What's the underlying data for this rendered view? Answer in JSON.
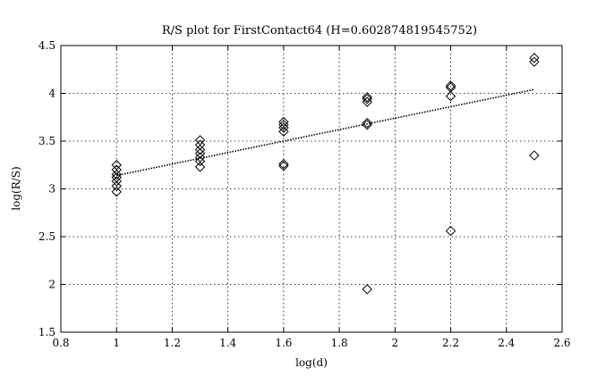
{
  "chart_data": {
    "type": "scatter",
    "title": "R/S plot for FirstContact64 (H=0.602874819545752)",
    "xlabel": "log(d)",
    "ylabel": "log(R/S)",
    "xlim": [
      0.8,
      2.6
    ],
    "ylim": [
      1.5,
      4.5
    ],
    "x_ticks": [
      "0.8",
      "1",
      "1.2",
      "1.4",
      "1.6",
      "1.8",
      "2",
      "2.2",
      "2.4",
      "2.6"
    ],
    "y_ticks": [
      "1.5",
      "2",
      "2.5",
      "3",
      "3.5",
      "4",
      "4.5"
    ],
    "grid": true,
    "marker": "diamond",
    "points": [
      [
        1.0,
        3.25
      ],
      [
        1.0,
        3.2
      ],
      [
        1.0,
        3.15
      ],
      [
        1.0,
        3.12
      ],
      [
        1.0,
        3.08
      ],
      [
        1.0,
        3.03
      ],
      [
        1.0,
        2.97
      ],
      [
        1.3,
        3.51
      ],
      [
        1.3,
        3.46
      ],
      [
        1.3,
        3.41
      ],
      [
        1.3,
        3.37
      ],
      [
        1.3,
        3.33
      ],
      [
        1.3,
        3.29
      ],
      [
        1.3,
        3.23
      ],
      [
        1.6,
        3.7
      ],
      [
        1.6,
        3.67
      ],
      [
        1.6,
        3.64
      ],
      [
        1.6,
        3.6
      ],
      [
        1.6,
        3.26
      ],
      [
        1.6,
        3.24
      ],
      [
        1.9,
        3.96
      ],
      [
        1.9,
        3.94
      ],
      [
        1.9,
        3.91
      ],
      [
        1.9,
        3.69
      ],
      [
        1.9,
        3.67
      ],
      [
        1.9,
        1.95
      ],
      [
        2.2,
        4.08
      ],
      [
        2.2,
        4.06
      ],
      [
        2.2,
        3.97
      ],
      [
        2.2,
        2.56
      ],
      [
        2.5,
        4.37
      ],
      [
        2.5,
        4.33
      ],
      [
        2.5,
        3.35
      ]
    ],
    "fit_line": {
      "x": [
        1.0,
        2.5
      ],
      "y": [
        3.14,
        4.04
      ]
    }
  }
}
